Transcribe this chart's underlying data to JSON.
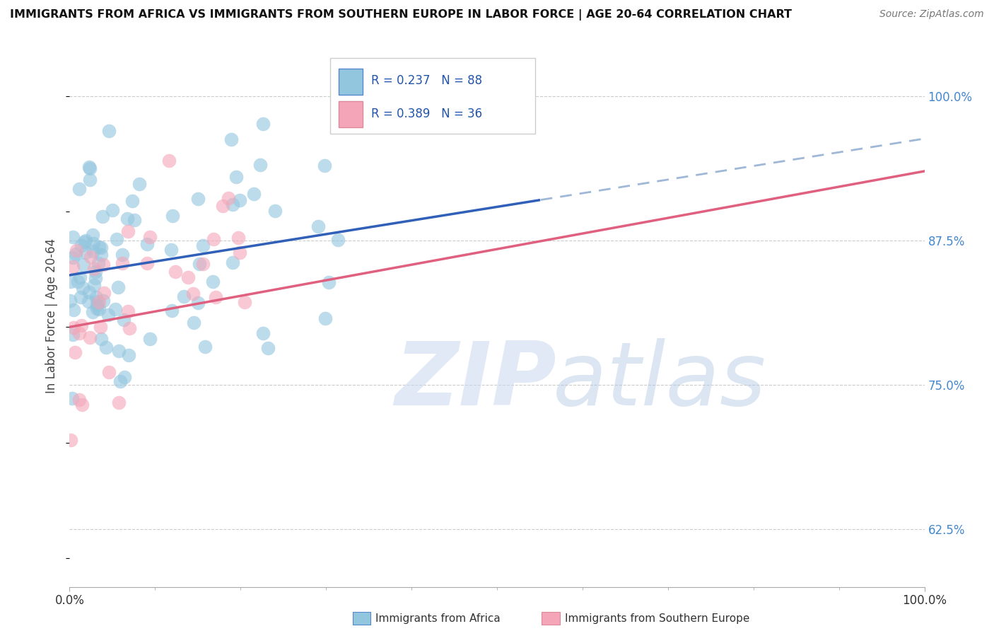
{
  "title": "IMMIGRANTS FROM AFRICA VS IMMIGRANTS FROM SOUTHERN EUROPE IN LABOR FORCE | AGE 20-64 CORRELATION CHART",
  "source": "Source: ZipAtlas.com",
  "ylabel": "In Labor Force | Age 20-64",
  "xlim": [
    0.0,
    1.0
  ],
  "ylim": [
    0.575,
    1.045
  ],
  "yticks": [
    0.625,
    0.75,
    0.875,
    1.0
  ],
  "ytick_labels": [
    "62.5%",
    "75.0%",
    "87.5%",
    "100.0%"
  ],
  "series_africa": {
    "R": 0.237,
    "N": 88,
    "color": "#92c5de",
    "label": "Immigrants from Africa"
  },
  "series_europe": {
    "R": 0.389,
    "N": 36,
    "color": "#f4a6b8",
    "label": "Immigrants from Southern Europe"
  },
  "watermark_zip": "ZIP",
  "watermark_atlas": "atlas",
  "background_color": "#ffffff",
  "grid_color": "#cccccc",
  "line_blue_solid": "#3060b8",
  "line_blue_dash": "#a0b8d8",
  "line_pink": "#e06080"
}
